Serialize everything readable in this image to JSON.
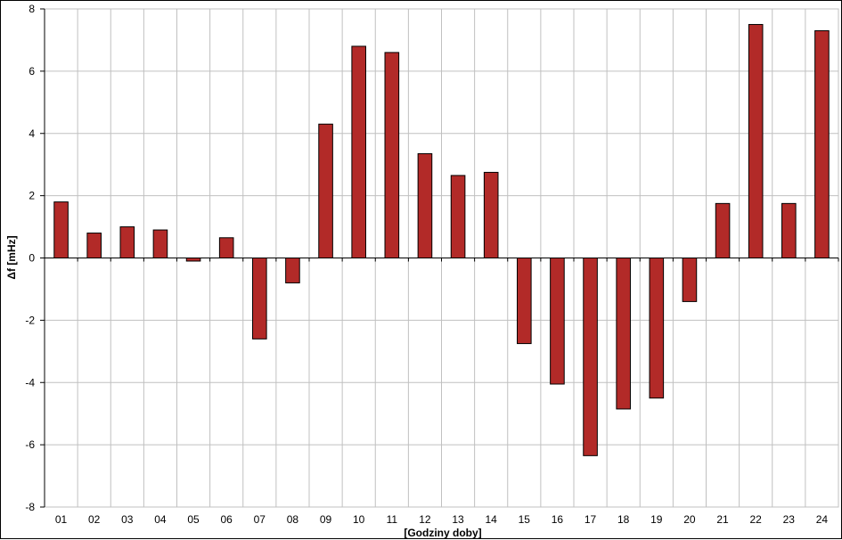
{
  "chart_data": {
    "type": "bar",
    "xlabel": "[Godziny doby]",
    "ylabel": "Δf [mHz]",
    "ylim": [
      -8,
      8
    ],
    "yticks": [
      -8,
      -6,
      -4,
      -2,
      0,
      2,
      4,
      6,
      8
    ],
    "grid": true,
    "categories": [
      "01",
      "02",
      "03",
      "04",
      "05",
      "06",
      "07",
      "08",
      "09",
      "10",
      "11",
      "12",
      "13",
      "14",
      "15",
      "16",
      "17",
      "18",
      "19",
      "20",
      "21",
      "22",
      "23",
      "24"
    ],
    "values": [
      1.8,
      0.8,
      1.0,
      0.9,
      -0.1,
      0.65,
      -2.6,
      -0.8,
      4.3,
      6.8,
      6.6,
      3.35,
      2.65,
      2.75,
      -2.75,
      -4.05,
      -6.35,
      -4.85,
      -4.5,
      -1.4,
      1.75,
      7.5,
      1.75,
      7.3
    ],
    "colors": {
      "bar": "#B22A28",
      "bar_edge": "#000000",
      "grid": "#C0C0C0",
      "axis": "#000000"
    }
  }
}
